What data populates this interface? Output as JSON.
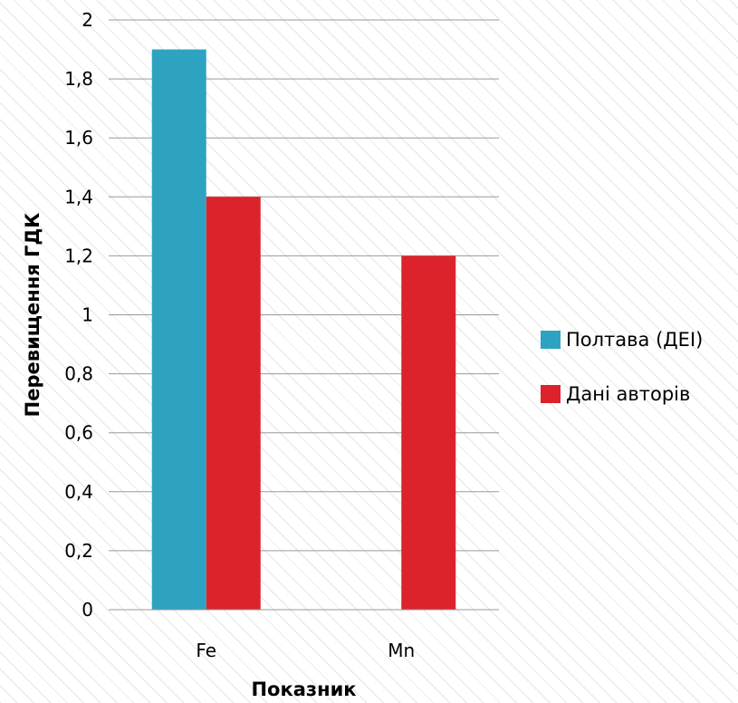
{
  "chart_data": {
    "type": "bar",
    "categories": [
      "Fe",
      "Mn"
    ],
    "series": [
      {
        "name": "Полтава (ДЕІ)",
        "color": "#2ea3c1",
        "values": [
          1.9,
          null
        ]
      },
      {
        "name": "Дані авторів",
        "color": "#dc232c",
        "values": [
          1.4,
          1.2
        ]
      }
    ],
    "xlabel": "Показник",
    "ylabel": "Перевищення ГДК",
    "ylim": [
      0,
      2
    ],
    "yticks": [
      "0",
      "0,2",
      "0,4",
      "0,6",
      "0,8",
      "1",
      "1,2",
      "1,4",
      "1,6",
      "1,8",
      "2"
    ],
    "grid": true,
    "legend": "right"
  }
}
